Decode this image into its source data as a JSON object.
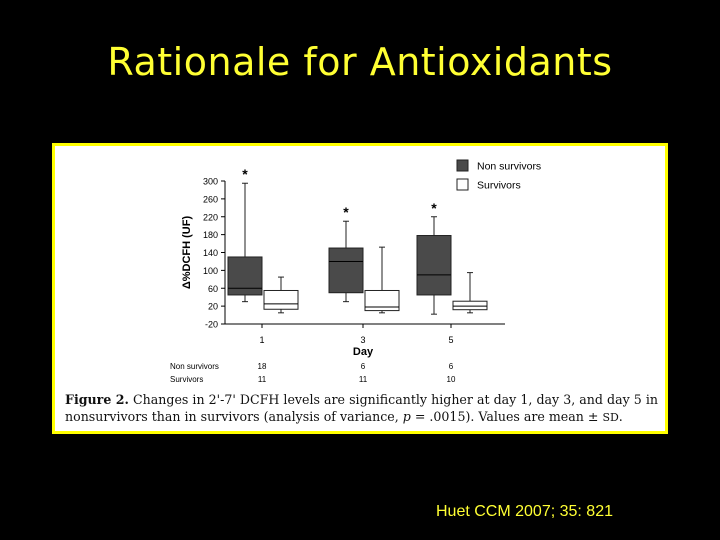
{
  "slide": {
    "title": "Rationale for Antioxidants",
    "citation": "Huet  CCM 2007; 35: 821"
  },
  "figure": {
    "caption_prefix": "Figure 2.",
    "caption_text": "Changes in 2'-7' DCFH levels are significantly higher at day 1, day 3, and day 5 in nonsurvivors than in survivors (analysis of variance, p = .0015). Values are mean ± SD.",
    "caption_part1": "Changes in 2'-7' DCFH levels are significantly higher at day 1, day 3, and day 5 in nonsurvivors than in survivors (analysis of variance, ",
    "caption_p": "p",
    "caption_part2": " = .0015). Values are mean ± ",
    "caption_sd": "SD",
    "caption_end": "."
  },
  "colors": {
    "nonsurvivors_fill": "#4a4a4a",
    "survivors_fill": "#ffffff",
    "frame": "#ffff00",
    "title": "#ffff33"
  },
  "chart_data": {
    "type": "box",
    "xlabel": "Day",
    "ylabel": "Δ%DCFH (UF)",
    "categories": [
      "1",
      "3",
      "5"
    ],
    "ylim": [
      -20,
      300
    ],
    "yticks": [
      -20,
      20,
      60,
      100,
      140,
      180,
      220,
      260,
      300
    ],
    "legend": {
      "placement": "top-right",
      "entries": [
        "Non survivors",
        "Survivors"
      ]
    },
    "series": [
      {
        "name": "Non survivors",
        "color": "#4a4a4a",
        "boxes": [
          {
            "day": "1",
            "whisker_low": 30,
            "q1": 45,
            "median": 60,
            "q3": 130,
            "whisker_high": 295,
            "significance": "*"
          },
          {
            "day": "3",
            "whisker_low": 30,
            "q1": 50,
            "median": 120,
            "q3": 150,
            "whisker_high": 210,
            "significance": "*"
          },
          {
            "day": "5",
            "whisker_low": 2,
            "q1": 45,
            "median": 90,
            "q3": 178,
            "whisker_high": 220,
            "significance": "*"
          }
        ]
      },
      {
        "name": "Survivors",
        "color": "#ffffff",
        "boxes": [
          {
            "day": "1",
            "whisker_low": 5,
            "q1": 13,
            "median": 25,
            "q3": 55,
            "whisker_high": 85
          },
          {
            "day": "3",
            "whisker_low": 5,
            "q1": 10,
            "median": 18,
            "q3": 55,
            "whisker_high": 152
          },
          {
            "day": "5",
            "whisker_low": 5,
            "q1": 12,
            "median": 20,
            "q3": 31,
            "whisker_high": 95
          }
        ]
      }
    ],
    "counts_table": [
      {
        "label": "Non survivors",
        "values": [
          "18",
          "6",
          "6"
        ]
      },
      {
        "label": "Survivors",
        "values": [
          "11",
          "11",
          "10"
        ]
      }
    ]
  }
}
